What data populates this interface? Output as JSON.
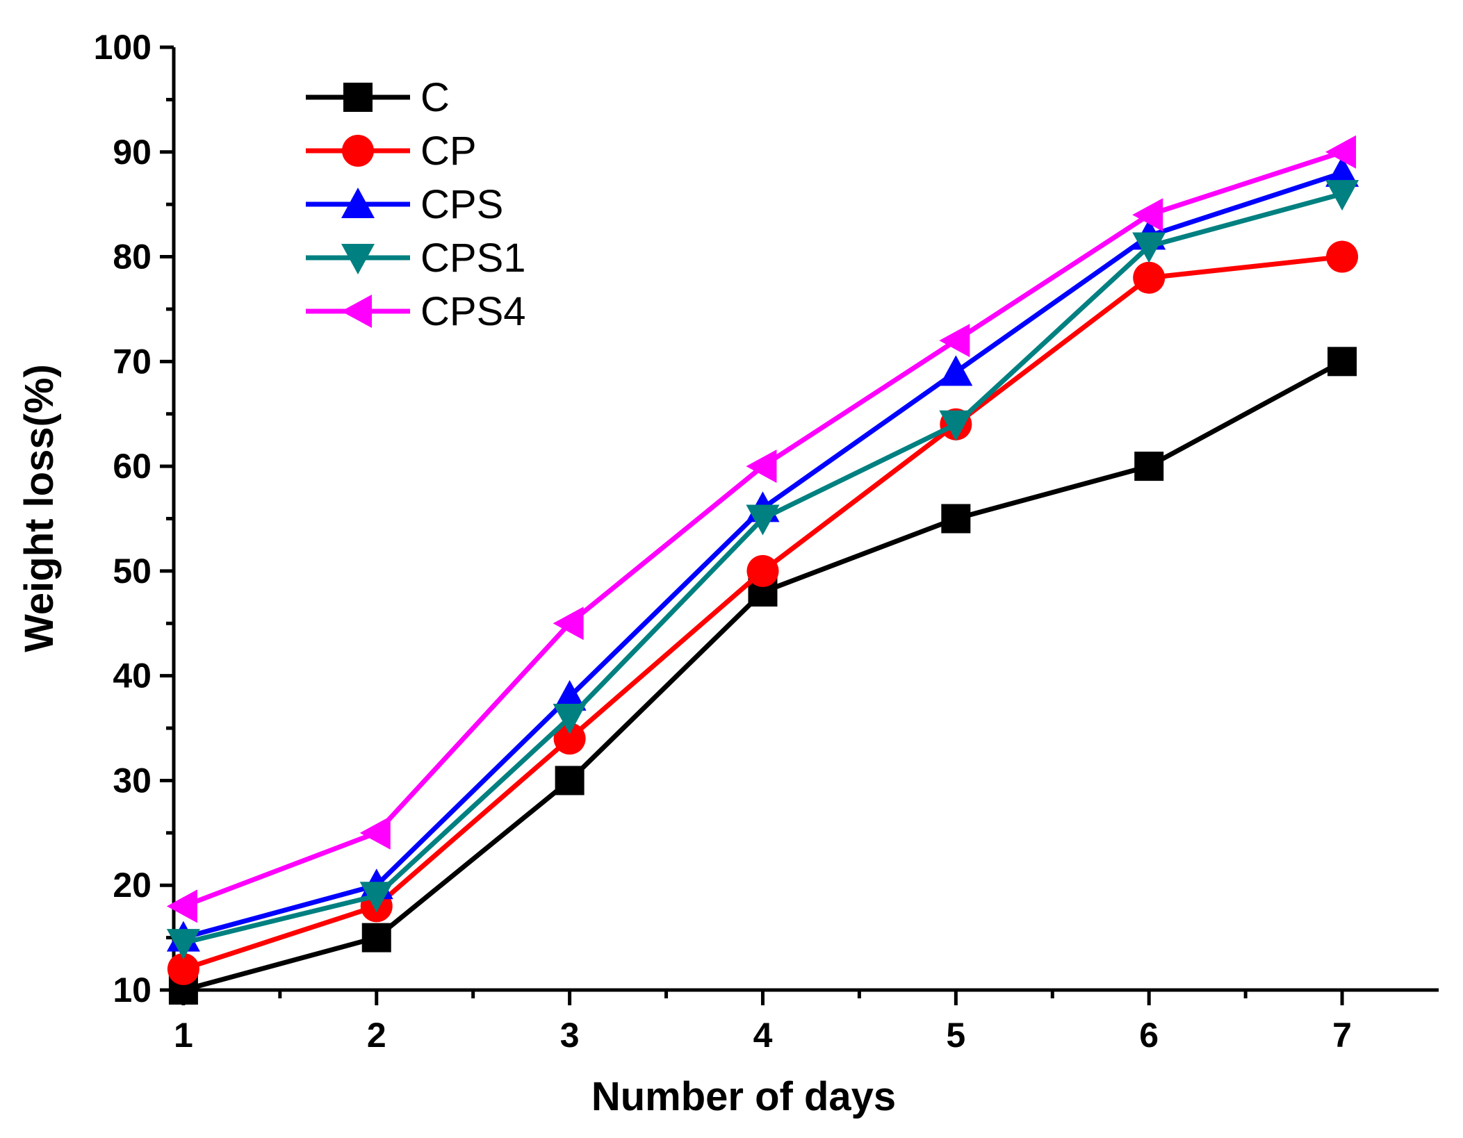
{
  "chart_data": {
    "type": "line",
    "title": "",
    "xlabel": "Number of days",
    "ylabel": "Weight loss(%)",
    "x": [
      1,
      2,
      3,
      4,
      5,
      6,
      7
    ],
    "xlim": [
      0.95,
      7.5
    ],
    "ylim": [
      10,
      100
    ],
    "xticks": [
      1,
      2,
      3,
      4,
      5,
      6,
      7
    ],
    "yticks": [
      10,
      20,
      30,
      40,
      50,
      60,
      70,
      80,
      90,
      100
    ],
    "grid": false,
    "legend_position": "top-left",
    "series": [
      {
        "name": "C",
        "color": "#000000",
        "marker": "square",
        "values": [
          10,
          15,
          30,
          48,
          55,
          60,
          70
        ]
      },
      {
        "name": "CP",
        "color": "#ff0000",
        "marker": "circle",
        "values": [
          12,
          18,
          34,
          50,
          64,
          78,
          80
        ]
      },
      {
        "name": "CPS",
        "color": "#0000ff",
        "marker": "triangle-up",
        "values": [
          15,
          20,
          38,
          56,
          69,
          82,
          88
        ]
      },
      {
        "name": "CPS1",
        "color": "#008080",
        "marker": "triangle-down",
        "values": [
          14.5,
          19,
          36,
          55,
          64,
          81,
          86
        ]
      },
      {
        "name": "CPS4",
        "color": "#ff00ff",
        "marker": "triangle-left",
        "values": [
          18,
          25,
          45,
          60,
          72,
          84,
          90
        ]
      }
    ]
  }
}
